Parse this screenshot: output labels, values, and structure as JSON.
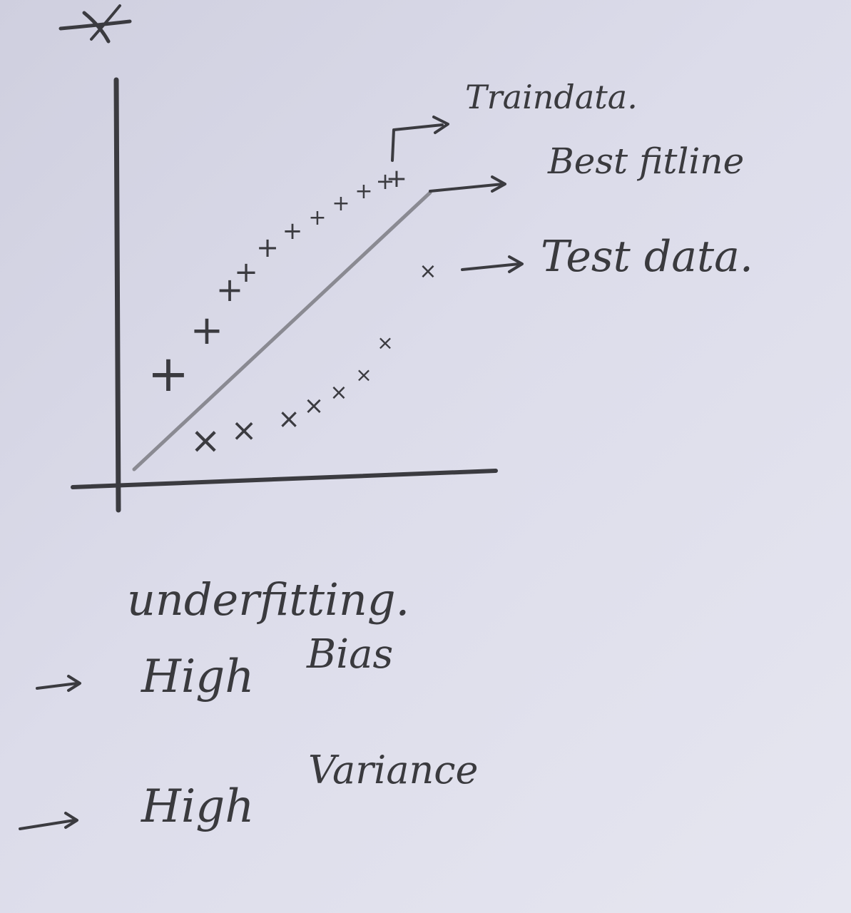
{
  "diagram": {
    "legend": {
      "train": "Traindata.",
      "best_fit": "Best fitline",
      "test": "Test data."
    },
    "caption": "underfitting.",
    "notes": [
      {
        "arrow": "→",
        "line1": "High",
        "line2": "Bias"
      },
      {
        "arrow": "→",
        "line1": "High",
        "line2": "Variance"
      }
    ]
  },
  "colors": {
    "ink": "#3b3b40",
    "paper": "#d9d9e7",
    "fit_line": "#8a8a92"
  },
  "markers": {
    "train": "+",
    "test": "×"
  }
}
